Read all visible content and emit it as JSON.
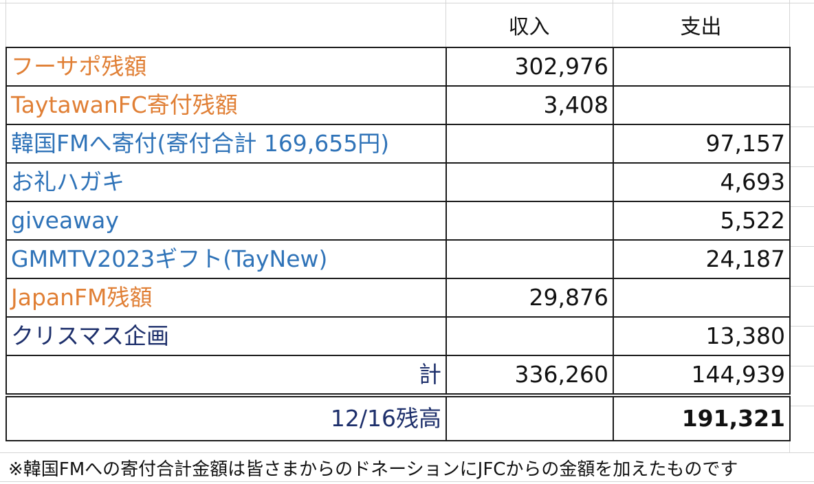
{
  "header": {
    "income": "収入",
    "expense": "支出"
  },
  "rows": [
    {
      "label": "フーサポ残額",
      "income": "302,976",
      "expense": ""
    },
    {
      "label": "TaytawanFC寄付残額",
      "income": "3,408",
      "expense": ""
    },
    {
      "label": "韓国FMへ寄付(寄付合計 169,655円)",
      "income": "",
      "expense": "97,157"
    },
    {
      "label": "お礼ハガキ",
      "income": "",
      "expense": "4,693"
    },
    {
      "label": "giveaway",
      "income": "",
      "expense": "5,522"
    },
    {
      "label": "GMMTV2023ギフト(TayNew)",
      "income": "",
      "expense": "24,187"
    },
    {
      "label": "JapanFM残額",
      "income": "29,876",
      "expense": ""
    },
    {
      "label": "クリスマス企画",
      "income": "",
      "expense": "13,380"
    }
  ],
  "total": {
    "label": "計",
    "income": "336,260",
    "expense": "144,939"
  },
  "balance": {
    "label": "12/16残高",
    "value": "191,321"
  },
  "footnote": "※韓国FMへの寄付合計金額は皆さまからのドネーションにJFCからの金額を加えたものです",
  "colors": {
    "orange": "#e07f35",
    "blue": "#2f73b8",
    "navy": "#1d2f6b"
  }
}
